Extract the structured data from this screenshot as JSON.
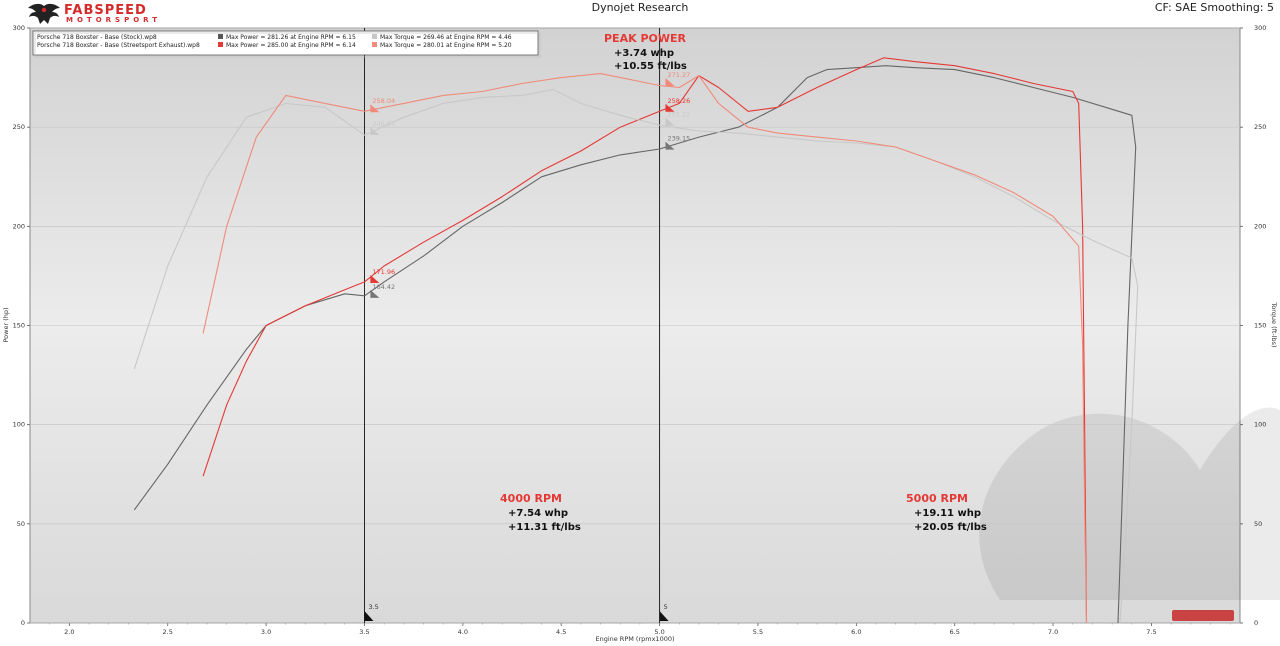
{
  "header": {
    "logo_name": "FABSPEED",
    "logo_sub": "MOTORSPORT",
    "app_title": "Dynojet Research",
    "settings": "CF: SAE Smoothing: 5"
  },
  "legend": [
    {
      "run": "Porsche 718 Boxster - Base (Stock).wp8",
      "power": "Max Power = 281.26 at Engine RPM = 6.15",
      "torque": "Max Torque = 269.46 at Engine RPM = 4.46",
      "power_color": "#555555",
      "torque_color": "#c8c8c8"
    },
    {
      "run": "Porsche 718 Boxster - Base (Streetsport Exhaust).wp8",
      "power": "Max Power = 285.00 at Engine RPM = 6.14",
      "torque": "Max Torque = 280.01 at Engine RPM = 5.20",
      "power_color": "#e53935",
      "torque_color": "#f08a7a"
    }
  ],
  "annotations": {
    "peak": {
      "title": "PEAK POWER",
      "line1": "+3.74 whp",
      "line2": "+10.55 ft/lbs"
    },
    "rpm4000": {
      "title": "4000 RPM",
      "line1": "+7.54 whp",
      "line2": "+11.31 ft/lbs"
    },
    "rpm5000": {
      "title": "5000 RPM",
      "line1": "+19.11 whp",
      "line2": "+20.05 ft/lbs"
    }
  },
  "chart_data": {
    "type": "line",
    "xlabel": "Engine RPM (rpmx1000)",
    "ylabel": "Power (hp)",
    "y2label": "Torque (ft-lbs)",
    "xlim": [
      1.8,
      7.95
    ],
    "ylim": [
      0,
      300
    ],
    "xticks": [
      "2.0",
      "2.5",
      "3.0",
      "3.5",
      "4.0",
      "4.5",
      "5.0",
      "5.5",
      "6.0",
      "6.5",
      "7.0",
      "7.5"
    ],
    "yticks": [
      "0",
      "50",
      "100",
      "150",
      "200",
      "250",
      "300"
    ],
    "cursors": [
      {
        "x": 3.5,
        "label": "3.5"
      },
      {
        "x": 5.0,
        "label": "5"
      }
    ],
    "markers": [
      {
        "x": 3.53,
        "y": 258.04,
        "label": "258.04",
        "color": "#f08a7a"
      },
      {
        "x": 3.53,
        "y": 246.57,
        "label": "246.57",
        "color": "#c8c8c8"
      },
      {
        "x": 3.53,
        "y": 171.96,
        "label": "171.96",
        "color": "#e53935"
      },
      {
        "x": 3.53,
        "y": 164.42,
        "label": "164.42",
        "color": "#777777"
      },
      {
        "x": 5.03,
        "y": 271.27,
        "label": "271.27",
        "color": "#f08a7a"
      },
      {
        "x": 5.03,
        "y": 251.22,
        "label": "251.22",
        "color": "#c8c8c8"
      },
      {
        "x": 5.03,
        "y": 258.26,
        "label": "258.26",
        "color": "#e53935"
      },
      {
        "x": 5.03,
        "y": 239.15,
        "label": "239.15",
        "color": "#777777"
      }
    ],
    "series": [
      {
        "name": "Stock Power",
        "color": "#666666",
        "points": [
          [
            2.33,
            57
          ],
          [
            2.5,
            80
          ],
          [
            2.7,
            110
          ],
          [
            2.9,
            138
          ],
          [
            3.0,
            150
          ],
          [
            3.2,
            160
          ],
          [
            3.4,
            166
          ],
          [
            3.5,
            165
          ],
          [
            3.6,
            172
          ],
          [
            3.8,
            185
          ],
          [
            4.0,
            200
          ],
          [
            4.2,
            212
          ],
          [
            4.4,
            225
          ],
          [
            4.6,
            231
          ],
          [
            4.8,
            236
          ],
          [
            5.0,
            239
          ],
          [
            5.2,
            245
          ],
          [
            5.4,
            250
          ],
          [
            5.6,
            260
          ],
          [
            5.75,
            275
          ],
          [
            5.85,
            279
          ],
          [
            6.0,
            280
          ],
          [
            6.15,
            281
          ],
          [
            6.3,
            280
          ],
          [
            6.5,
            279
          ],
          [
            6.7,
            275
          ],
          [
            6.9,
            270
          ],
          [
            7.1,
            265
          ],
          [
            7.3,
            259
          ],
          [
            7.4,
            256
          ],
          [
            7.42,
            240
          ],
          [
            7.38,
            150
          ],
          [
            7.35,
            60
          ],
          [
            7.33,
            0
          ]
        ]
      },
      {
        "name": "Exhaust Power",
        "color": "#e53935",
        "points": [
          [
            2.68,
            74
          ],
          [
            2.8,
            110
          ],
          [
            2.9,
            132
          ],
          [
            3.0,
            150
          ],
          [
            3.2,
            160
          ],
          [
            3.4,
            168
          ],
          [
            3.5,
            172
          ],
          [
            3.6,
            180
          ],
          [
            3.8,
            192
          ],
          [
            4.0,
            203
          ],
          [
            4.2,
            215
          ],
          [
            4.4,
            228
          ],
          [
            4.6,
            238
          ],
          [
            4.8,
            250
          ],
          [
            5.0,
            258
          ],
          [
            5.1,
            262
          ],
          [
            5.2,
            276
          ],
          [
            5.3,
            270
          ],
          [
            5.45,
            258
          ],
          [
            5.6,
            260
          ],
          [
            5.8,
            270
          ],
          [
            6.0,
            279
          ],
          [
            6.14,
            285
          ],
          [
            6.3,
            283
          ],
          [
            6.5,
            281
          ],
          [
            6.7,
            277
          ],
          [
            6.9,
            272
          ],
          [
            7.1,
            268
          ],
          [
            7.13,
            262
          ],
          [
            7.15,
            200
          ],
          [
            7.16,
            100
          ],
          [
            7.17,
            0
          ]
        ]
      },
      {
        "name": "Stock Torque",
        "color": "#c8c8c8",
        "points": [
          [
            2.33,
            128
          ],
          [
            2.5,
            180
          ],
          [
            2.7,
            225
          ],
          [
            2.9,
            255
          ],
          [
            3.1,
            262
          ],
          [
            3.3,
            260
          ],
          [
            3.5,
            246
          ],
          [
            3.7,
            255
          ],
          [
            3.9,
            262
          ],
          [
            4.1,
            265
          ],
          [
            4.3,
            266
          ],
          [
            4.46,
            269
          ],
          [
            4.6,
            262
          ],
          [
            4.8,
            256
          ],
          [
            5.0,
            251
          ],
          [
            5.2,
            248
          ],
          [
            5.4,
            247
          ],
          [
            5.6,
            245
          ],
          [
            5.8,
            243
          ],
          [
            6.0,
            242
          ],
          [
            6.2,
            240
          ],
          [
            6.4,
            233
          ],
          [
            6.6,
            225
          ],
          [
            6.8,
            215
          ],
          [
            7.0,
            203
          ],
          [
            7.2,
            193
          ],
          [
            7.4,
            184
          ],
          [
            7.43,
            170
          ],
          [
            7.4,
            100
          ],
          [
            7.36,
            30
          ],
          [
            7.34,
            0
          ]
        ]
      },
      {
        "name": "Exhaust Torque",
        "color": "#f08a7a",
        "points": [
          [
            2.68,
            146
          ],
          [
            2.8,
            200
          ],
          [
            2.95,
            245
          ],
          [
            3.1,
            266
          ],
          [
            3.3,
            262
          ],
          [
            3.5,
            258
          ],
          [
            3.7,
            262
          ],
          [
            3.9,
            266
          ],
          [
            4.1,
            268
          ],
          [
            4.3,
            272
          ],
          [
            4.5,
            275
          ],
          [
            4.7,
            277
          ],
          [
            4.9,
            273
          ],
          [
            5.0,
            271
          ],
          [
            5.1,
            270
          ],
          [
            5.2,
            276
          ],
          [
            5.3,
            262
          ],
          [
            5.45,
            250
          ],
          [
            5.6,
            247
          ],
          [
            5.8,
            245
          ],
          [
            6.0,
            243
          ],
          [
            6.2,
            240
          ],
          [
            6.4,
            233
          ],
          [
            6.6,
            226
          ],
          [
            6.8,
            217
          ],
          [
            7.0,
            205
          ],
          [
            7.13,
            190
          ],
          [
            7.15,
            140
          ],
          [
            7.16,
            60
          ],
          [
            7.17,
            0
          ]
        ]
      }
    ]
  }
}
